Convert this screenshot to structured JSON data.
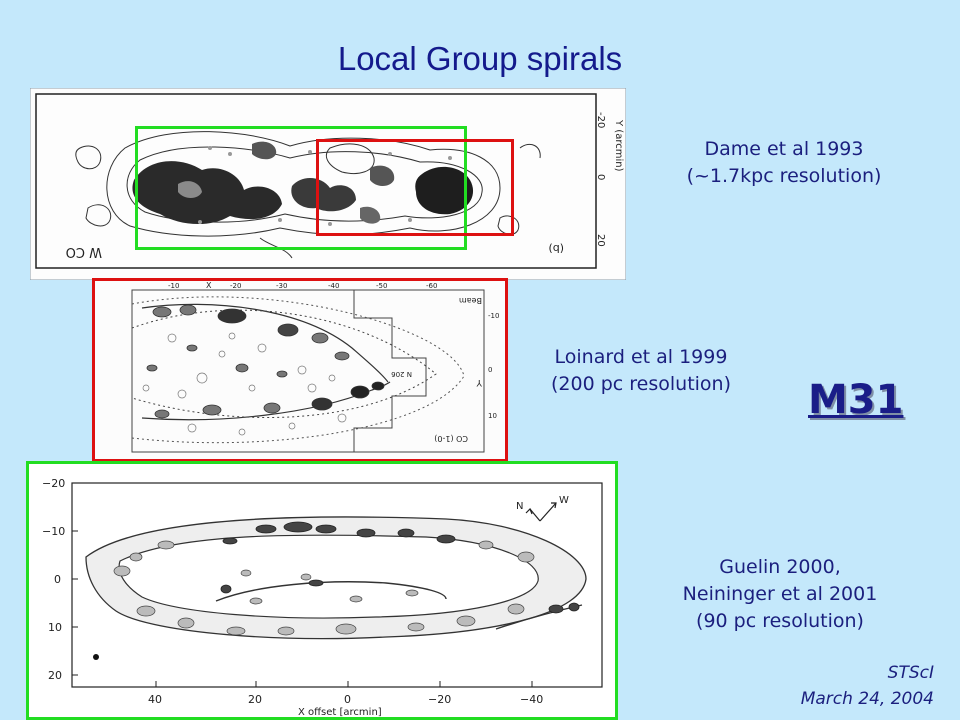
{
  "slide": {
    "title": "Local Group spirals",
    "galaxy_label": "M31",
    "footer": {
      "line1": "STScI",
      "line2": "March 24, 2004"
    },
    "colors": {
      "background": "#c4e8fb",
      "title": "#141a8c",
      "box_green": "#22dd22",
      "box_red": "#dd1111"
    }
  },
  "panels": {
    "dame": {
      "caption_line1": "Dame et al 1993",
      "caption_line2": "(~1.7kpc resolution)",
      "label_panel": "(b)",
      "label_wco": "W CO",
      "axis_label": "Y (arcmin)",
      "ticks": [
        "-20",
        "0",
        "20"
      ]
    },
    "loinard": {
      "caption_line1": "Loinard et al 1999",
      "caption_line2": "(200 pc resolution)",
      "label_beam": "Beam",
      "label_line": "CO (1-0)",
      "label_y": "Y",
      "label_x": "X",
      "label_n": "N 206",
      "ticks_top": [
        "-10",
        "-20",
        "-30",
        "-40",
        "-50",
        "-60"
      ],
      "ticks_right": [
        "-10",
        "0",
        "10"
      ]
    },
    "guelin": {
      "caption_line1": "Guelin 2000,",
      "caption_line2": "Neininger et al 2001",
      "caption_line3": "(90 pc resolution)",
      "xlabel": "X offset [arcmin]",
      "x_ticks": [
        "40",
        "20",
        "0",
        "−20",
        "−40"
      ],
      "y_ticks": [
        "−20",
        "−10",
        "0",
        "10",
        "20"
      ],
      "compass_n": "N",
      "compass_w": "W"
    }
  }
}
